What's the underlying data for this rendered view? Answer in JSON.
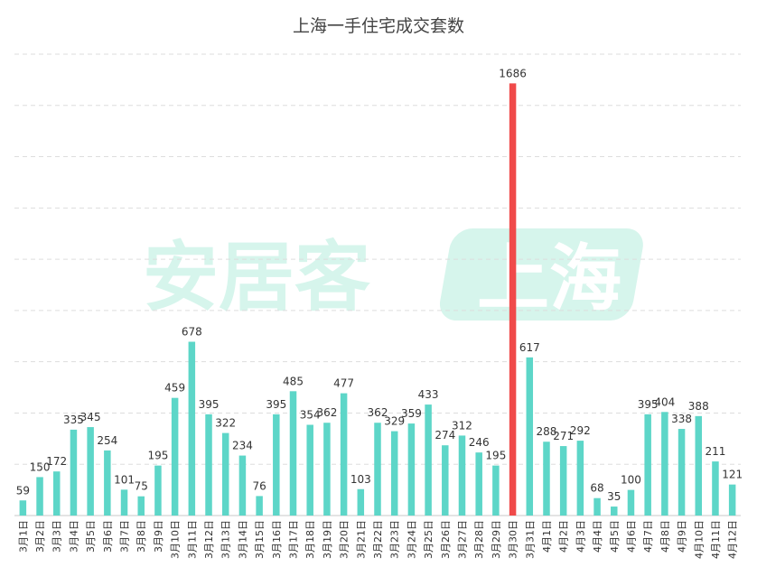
{
  "watermark": {
    "brand_text": "安居客",
    "badge_text": "上海",
    "color": "#d6f5ec"
  },
  "chart_data": {
    "type": "bar",
    "title": "上海一手住宅成交套数",
    "xlabel": "",
    "ylabel": "",
    "ylim": [
      0,
      1800
    ],
    "grid": true,
    "categories": [
      "3月1日",
      "3月2日",
      "3月3日",
      "3月4日",
      "3月5日",
      "3月6日",
      "3月7日",
      "3月8日",
      "3月9日",
      "3月10日",
      "3月11日",
      "3月12日",
      "3月13日",
      "3月14日",
      "3月15日",
      "3月16日",
      "3月17日",
      "3月18日",
      "3月19日",
      "3月20日",
      "3月21日",
      "3月22日",
      "3月23日",
      "3月24日",
      "3月25日",
      "3月26日",
      "3月27日",
      "3月28日",
      "3月29日",
      "3月30日",
      "3月31日",
      "4月1日",
      "4月2日",
      "4月3日",
      "4月4日",
      "4月5日",
      "4月6日",
      "4月7日",
      "4月8日",
      "4月9日",
      "4月10日",
      "4月11日",
      "4月12日"
    ],
    "values": [
      59,
      150,
      172,
      335,
      345,
      254,
      101,
      75,
      195,
      459,
      678,
      395,
      322,
      234,
      76,
      395,
      485,
      354,
      362,
      477,
      103,
      362,
      329,
      359,
      433,
      274,
      312,
      246,
      195,
      1686,
      617,
      288,
      271,
      292,
      68,
      35,
      100,
      395,
      404,
      338,
      388,
      211,
      121
    ],
    "bar_color": "#5dd6c8",
    "highlight": {
      "category": "3月30日",
      "color": "#f04a4a"
    }
  }
}
